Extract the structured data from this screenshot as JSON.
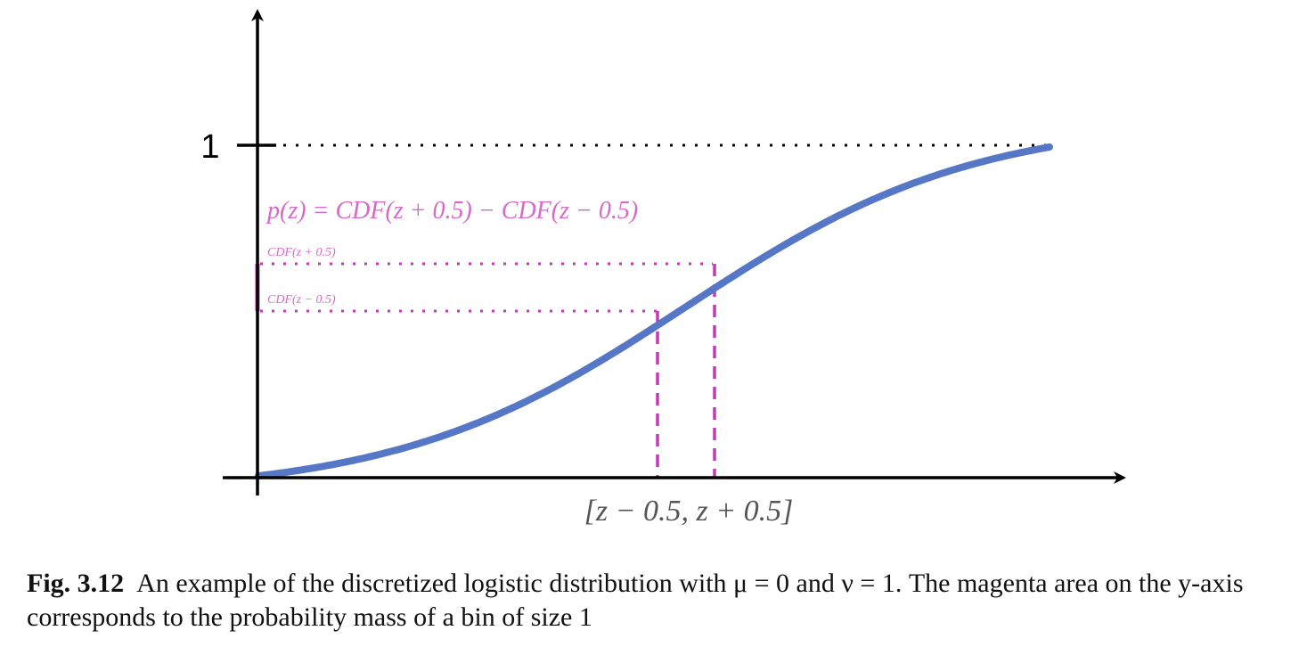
{
  "diagram": {
    "y_tick_label": "1",
    "formula_label": "p(z) = CDF(z + 0.5) − CDF(z − 0.5)",
    "upper_level_label": "CDF(z + 0.5)",
    "lower_level_label": "CDF(z − 0.5)",
    "x_interval_label": "[z − 0.5, z + 0.5]",
    "colors": {
      "curve": "#5577c6",
      "accent": "#c23ab8",
      "axis": "#000000"
    }
  },
  "caption": {
    "label": "Fig. 3.12",
    "text": "An example of the discretized logistic distribution with μ = 0 and ν = 1. The magenta area on the y-axis corresponds to the probability mass of a bin of size 1"
  }
}
